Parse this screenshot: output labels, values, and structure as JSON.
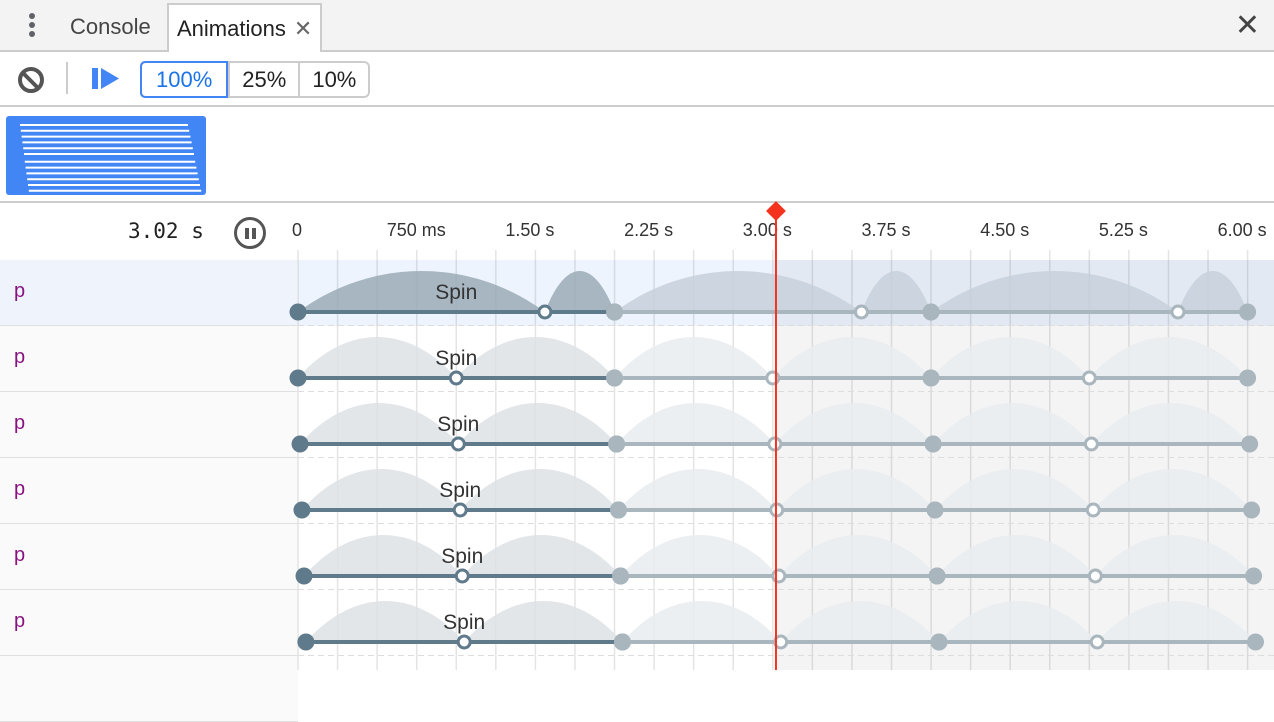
{
  "tabs": [
    {
      "label": "Console",
      "active": false
    },
    {
      "label": "Animations",
      "active": true,
      "closable": true
    }
  ],
  "icons": {
    "menu": "vertical-dots-icon",
    "close_tab": "close-icon",
    "close_drawer": "close-icon",
    "clear": "clear-icon",
    "replay": "play-icon",
    "pause": "pause-icon"
  },
  "toolbar": {
    "speeds": [
      {
        "label": "100%",
        "selected": true
      },
      {
        "label": "25%"
      },
      {
        "label": "10%"
      }
    ]
  },
  "header": {
    "current_time": "3.02 s",
    "playhead_s": 3.02,
    "ticks": [
      "0",
      "750 ms",
      "1.50 s",
      "2.25 s",
      "3.00 s",
      "3.75 s",
      "4.50 s",
      "5.25 s",
      "6.00 s"
    ]
  },
  "colors": {
    "accent": "#4285f4",
    "playhead": "#f4321e",
    "keyframe": "#5f7a8b",
    "node": "#881280"
  },
  "animations": [
    {
      "node": "p",
      "name": "Spin",
      "selected": true,
      "delay_ms": 0,
      "duration_ms": 2000,
      "keyframe_offsets": [
        0,
        0.78,
        1
      ]
    },
    {
      "node": "p",
      "name": "Spin",
      "delay_ms": 0,
      "duration_ms": 2000,
      "keyframe_offsets": [
        0,
        0.5,
        1
      ]
    },
    {
      "node": "p",
      "name": "Spin",
      "delay_ms": 13,
      "duration_ms": 2000,
      "keyframe_offsets": [
        0,
        0.5,
        1
      ]
    },
    {
      "node": "p",
      "name": "Spin",
      "delay_ms": 25,
      "duration_ms": 2000,
      "keyframe_offsets": [
        0,
        0.5,
        1
      ]
    },
    {
      "node": "p",
      "name": "Spin",
      "delay_ms": 38,
      "duration_ms": 2000,
      "keyframe_offsets": [
        0,
        0.5,
        1
      ]
    },
    {
      "node": "p",
      "name": "Spin",
      "delay_ms": 50,
      "duration_ms": 2000,
      "keyframe_offsets": [
        0,
        0.5,
        1
      ]
    }
  ]
}
